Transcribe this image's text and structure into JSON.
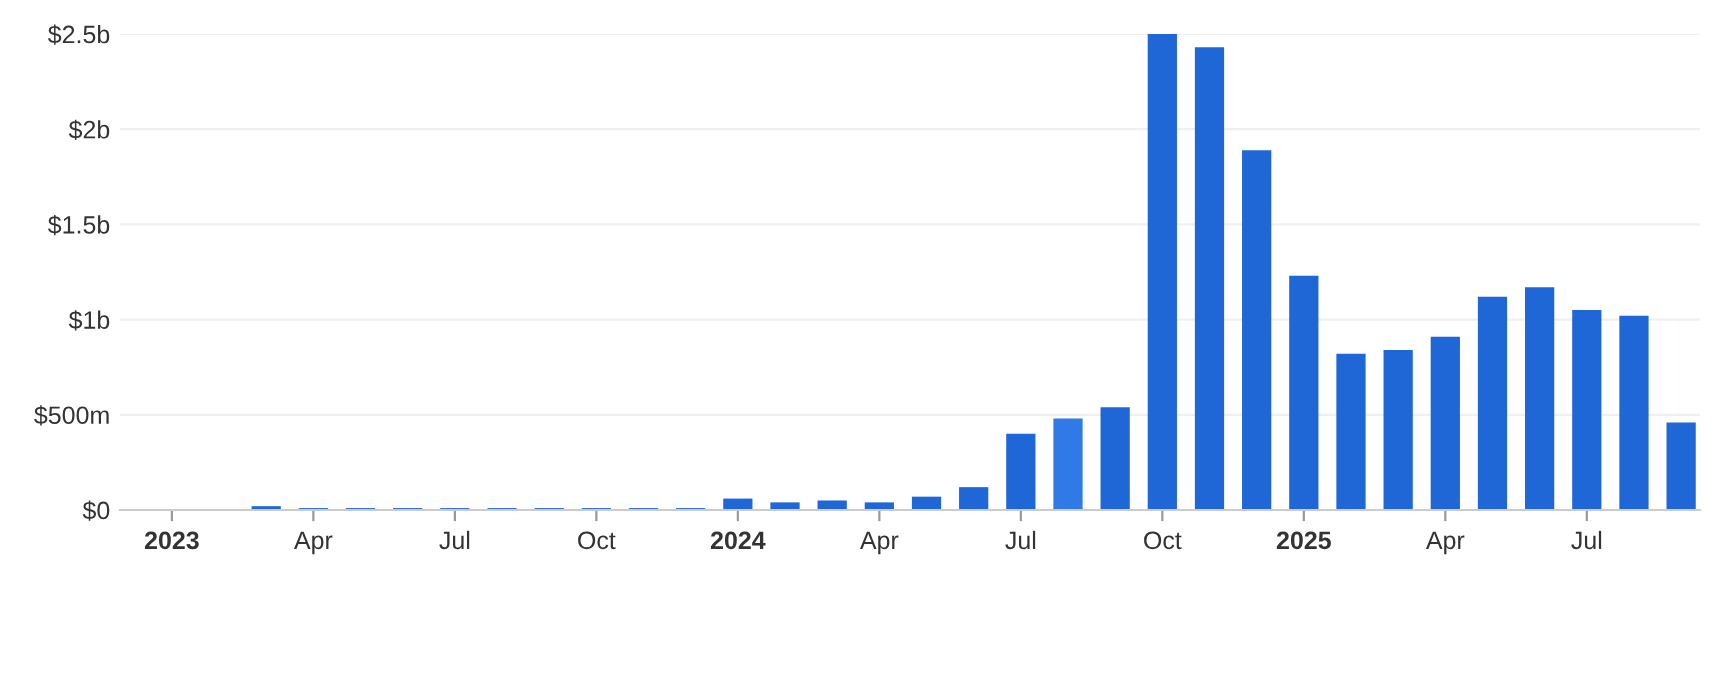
{
  "chart_data": {
    "type": "bar",
    "categories": [
      "2023",
      null,
      null,
      "Apr",
      null,
      null,
      "Jul",
      null,
      null,
      "Oct",
      null,
      null,
      "2024",
      null,
      null,
      "Apr",
      null,
      null,
      "Jul",
      null,
      null,
      "Oct",
      null,
      null,
      "2025",
      null,
      null,
      "Apr",
      null,
      null,
      "Jul",
      null,
      null
    ],
    "values": [
      0,
      0,
      20000000,
      10000000,
      10000000,
      10000000,
      10000000,
      10000000,
      10000000,
      10000000,
      10000000,
      10000000,
      60000000,
      40000000,
      50000000,
      40000000,
      70000000,
      120000000,
      400000000,
      480000000,
      540000000,
      2500000000,
      2430000000,
      1890000000,
      1230000000,
      820000000,
      840000000,
      910000000,
      1120000000,
      1170000000,
      1050000000,
      1020000000,
      460000000
    ],
    "colors": [
      "#1f66d6",
      "#1f66d6",
      "#1f66d6",
      "#1f66d6",
      "#1f66d6",
      "#1f66d6",
      "#1f66d6",
      "#1f66d6",
      "#1f66d6",
      "#1f66d6",
      "#1f66d6",
      "#1f66d6",
      "#1f66d6",
      "#1f66d6",
      "#1f66d6",
      "#1f66d6",
      "#1f66d6",
      "#1f66d6",
      "#1f66d6",
      "#2f7ae6",
      "#1f66d6",
      "#1f66d6",
      "#1f66d6",
      "#1f66d6",
      "#1f66d6",
      "#1f66d6",
      "#1f66d6",
      "#1f66d6",
      "#1f66d6",
      "#1f66d6",
      "#1f66d6",
      "#1f66d6",
      "#1f66d6"
    ],
    "ylim": [
      0,
      2500000000
    ],
    "yticks": [
      {
        "value": 0,
        "label": "$0"
      },
      {
        "value": 500000000,
        "label": "$500m"
      },
      {
        "value": 1000000000,
        "label": "$1b"
      },
      {
        "value": 1500000000,
        "label": "$1.5b"
      },
      {
        "value": 2000000000,
        "label": "$2b"
      },
      {
        "value": 2500000000,
        "label": "$2.5b"
      }
    ],
    "grid": "y"
  }
}
